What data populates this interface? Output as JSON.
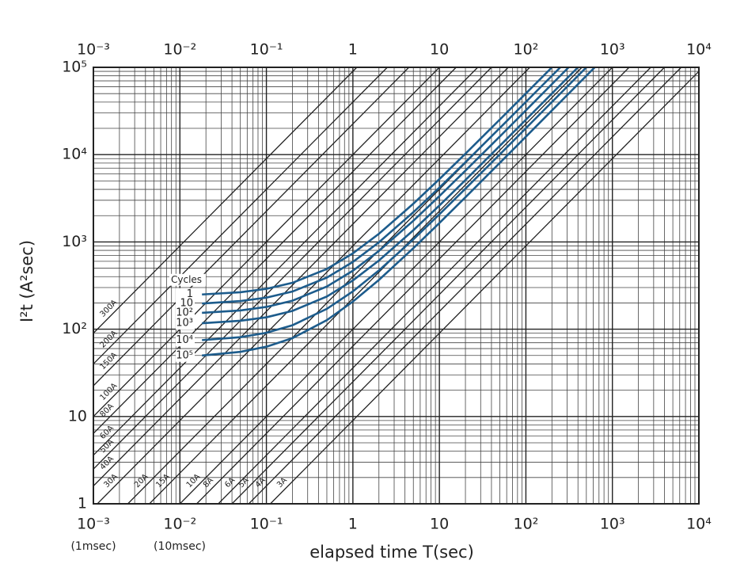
{
  "chart_data": {
    "type": "line",
    "x_label": "elapsed time T(sec)",
    "y_label": "I²t (A²sec)",
    "annotations": [
      "(1msec)",
      "(10msec)"
    ],
    "log_x": true,
    "log_y": true,
    "grid": true,
    "minor_grid": true,
    "xlim": [
      0.001,
      10000
    ],
    "ylim": [
      1,
      100000
    ],
    "xticks": [
      {
        "value": 0.001,
        "label": "10⁻³"
      },
      {
        "value": 0.01,
        "label": "10⁻²"
      },
      {
        "value": 0.1,
        "label": "10⁻¹"
      },
      1,
      10,
      {
        "value": 100,
        "label": "10²"
      },
      {
        "value": 1000,
        "label": "10³"
      },
      {
        "value": 10000,
        "label": "10⁴"
      }
    ],
    "yticks": [
      1,
      10,
      {
        "value": 100,
        "label": "10²"
      },
      {
        "value": 1000,
        "label": "10³"
      },
      {
        "value": 10000,
        "label": "10⁴"
      },
      {
        "value": 100000,
        "label": "10⁵"
      }
    ],
    "line_color": "#222222",
    "current_lines": [
      {
        "value": 300,
        "label": "300A"
      },
      {
        "value": 200,
        "label": "200A"
      },
      {
        "value": 150,
        "label": "150A"
      },
      {
        "value": 100,
        "label": "100A"
      },
      {
        "value": 80,
        "label": "80A"
      },
      {
        "value": 60,
        "label": "60A"
      },
      {
        "value": 50,
        "label": "50A"
      },
      {
        "value": 40,
        "label": "40A"
      },
      {
        "value": 30,
        "label": "30A"
      },
      {
        "value": 20,
        "label": "20A"
      },
      {
        "value": 15,
        "label": "15A"
      },
      {
        "value": 10,
        "label": "10A"
      },
      {
        "value": 8,
        "label": "8A"
      },
      {
        "value": 6,
        "label": "6A"
      },
      {
        "value": 5,
        "label": "5A"
      },
      {
        "value": 4,
        "label": "4A"
      },
      {
        "value": 3,
        "label": "3A"
      }
    ],
    "legend_title": "Cycles",
    "series": [
      {
        "name": "1",
        "color": "#1d5c8c",
        "x": [
          0.018,
          0.05,
          0.1,
          0.2,
          0.5,
          1,
          2,
          5,
          10,
          20,
          50,
          100,
          200
        ],
        "values": [
          250,
          265,
          290,
          340,
          490,
          740,
          1240,
          2740,
          5240,
          10240,
          25240,
          50240,
          100000
        ]
      },
      {
        "name": "10",
        "color": "#1d5c8c",
        "x": [
          0.018,
          0.05,
          0.1,
          0.2,
          0.5,
          1,
          2,
          5,
          10,
          20,
          50,
          100,
          250
        ],
        "values": [
          197,
          210,
          230,
          270,
          390,
          590,
          990,
          2190,
          4190,
          8190,
          20190,
          40190,
          100000
        ]
      },
      {
        "name": "10²",
        "color": "#1d5c8c",
        "x": [
          0.018,
          0.05,
          0.1,
          0.2,
          0.5,
          1,
          2,
          5,
          10,
          20,
          50,
          100,
          200,
          312
        ],
        "values": [
          154,
          164,
          180,
          212,
          308,
          468,
          788,
          1748,
          3348,
          6548,
          16148,
          32148,
          64148,
          100000
        ]
      },
      {
        "name": "10³",
        "color": "#1d5c8c",
        "x": [
          0.018,
          0.05,
          0.1,
          0.2,
          0.5,
          1,
          2,
          5,
          10,
          20,
          50,
          100,
          200,
          400
        ],
        "values": [
          117,
          125,
          137,
          162,
          237,
          362,
          612,
          1362,
          2612,
          5112,
          12612,
          25112,
          50112,
          100000
        ]
      },
      {
        "name": "10⁴",
        "color": "#1d5c8c",
        "x": [
          0.018,
          0.05,
          0.1,
          0.2,
          0.5,
          1,
          2,
          5,
          10,
          20,
          50,
          100,
          200,
          500
        ],
        "values": [
          75,
          81,
          91,
          111,
          171,
          271,
          471,
          1071,
          2071,
          4071,
          10071,
          20071,
          40071,
          100000
        ]
      },
      {
        "name": "10⁵",
        "color": "#1d5c8c",
        "x": [
          0.018,
          0.05,
          0.1,
          0.2,
          0.5,
          1,
          2,
          5,
          10,
          20,
          50,
          100,
          200,
          625
        ],
        "values": [
          50,
          55,
          63,
          79,
          127,
          207,
          367,
          847,
          1647,
          3247,
          8047,
          16047,
          32047,
          100000
        ]
      }
    ]
  }
}
